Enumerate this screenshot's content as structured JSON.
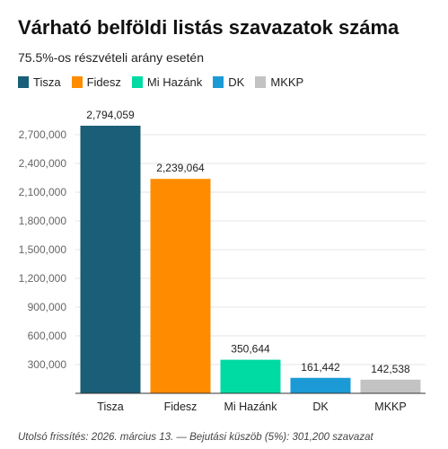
{
  "header": {
    "title": "Várható belföldi listás szavazatok száma",
    "subtitle": "75.5%-os részvételi arány esetén"
  },
  "footer": {
    "note": "Utolsó frissítés: 2026. március 13. — Bejutási küszöb (5%): 301,200 szavazat"
  },
  "chart_data": {
    "type": "bar",
    "title": "Várható belföldi listás szavazatok száma",
    "subtitle": "75.5%-os részvételi arány esetén",
    "xlabel": "",
    "ylabel": "",
    "categories": [
      "Tisza",
      "Fidesz",
      "Mi Hazánk",
      "DK",
      "MKKP"
    ],
    "values": [
      2794059,
      2239064,
      350644,
      161442,
      142538
    ],
    "value_labels": [
      "2,794,059",
      "2,239,064",
      "350,644",
      "161,442",
      "142,538"
    ],
    "colors": [
      "#1a5e78",
      "#ff8c00",
      "#00dba3",
      "#1b9ad6",
      "#c3c3c3"
    ],
    "legend": {
      "placement": "top-left",
      "entries": [
        "Tisza",
        "Fidesz",
        "Mi Hazánk",
        "DK",
        "MKKP"
      ]
    },
    "ylim": [
      0,
      2794059
    ],
    "yticks": [
      300000,
      600000,
      900000,
      1200000,
      1500000,
      1800000,
      2100000,
      2400000,
      2700000
    ],
    "ytick_labels": [
      "300,000",
      "600,000",
      "900,000",
      "1,200,000",
      "1,500,000",
      "1,800,000",
      "2,100,000",
      "2,400,000",
      "2,700,000"
    ],
    "grid": true
  }
}
